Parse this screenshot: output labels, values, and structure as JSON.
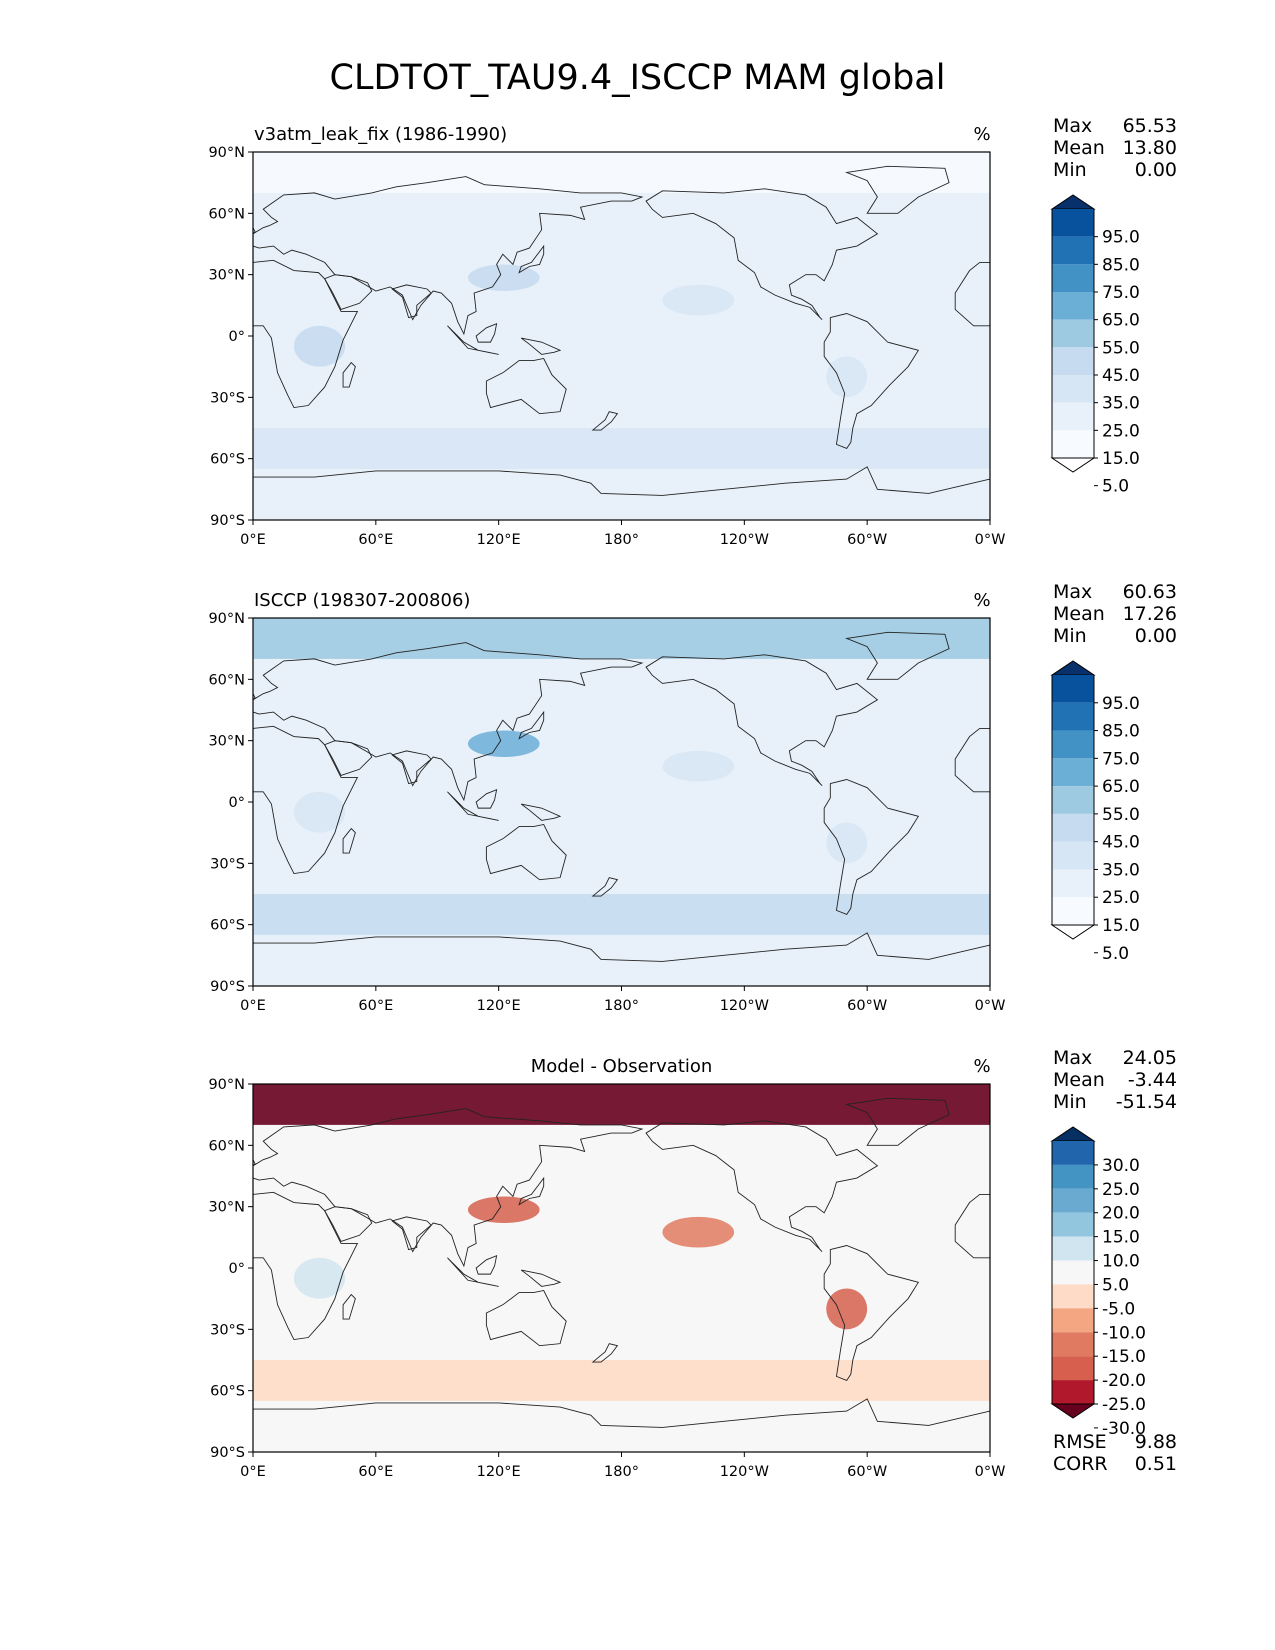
{
  "title": "CLDTOT_TAU9.4_ISCCP MAM global",
  "chart_data": [
    {
      "type": "heatmap",
      "title": "v3atm_leak_fix (1986-1990)",
      "units": "%",
      "stats": {
        "Max": "65.53",
        "Mean": "13.80",
        "Min": "0.00"
      },
      "colorbar": [
        "95.0",
        "85.0",
        "75.0",
        "65.0",
        "55.0",
        "45.0",
        "35.0",
        "25.0",
        "15.0",
        "5.0"
      ],
      "colors": [
        "#08306b",
        "#08519c",
        "#2171b5",
        "#4292c6",
        "#6baed6",
        "#9ecae1",
        "#c6dbef",
        "#d7e6f5",
        "#e8f1fa",
        "#f7fbff",
        "#ffffff"
      ],
      "yticks": [
        "90°N",
        "60°N",
        "30°N",
        "0°",
        "30°S",
        "60°S",
        "90°S"
      ],
      "xticks": [
        "0°E",
        "60°E",
        "120°E",
        "180°",
        "120°W",
        "60°W",
        "0°W"
      ],
      "xlim": [
        0,
        360
      ],
      "ylim": [
        -90,
        90
      ]
    },
    {
      "type": "heatmap",
      "title": "ISCCP (198307-200806)",
      "units": "%",
      "stats": {
        "Max": "60.63",
        "Mean": "17.26",
        "Min": "0.00"
      },
      "colorbar": [
        "95.0",
        "85.0",
        "75.0",
        "65.0",
        "55.0",
        "45.0",
        "35.0",
        "25.0",
        "15.0",
        "5.0"
      ],
      "colors": [
        "#08306b",
        "#08519c",
        "#2171b5",
        "#4292c6",
        "#6baed6",
        "#9ecae1",
        "#c6dbef",
        "#d7e6f5",
        "#e8f1fa",
        "#f7fbff",
        "#ffffff"
      ],
      "yticks": [
        "90°N",
        "60°N",
        "30°N",
        "0°",
        "30°S",
        "60°S",
        "90°S"
      ],
      "xticks": [
        "0°E",
        "60°E",
        "120°E",
        "180°",
        "120°W",
        "60°W",
        "0°W"
      ],
      "xlim": [
        0,
        360
      ],
      "ylim": [
        -90,
        90
      ]
    },
    {
      "type": "heatmap",
      "title": "Model - Observation",
      "units": "%",
      "stats": {
        "Max": "24.05",
        "Mean": "-3.44",
        "Min": "-51.54"
      },
      "colorbar": [
        "30.0",
        "25.0",
        "20.0",
        "15.0",
        "10.0",
        "5.0",
        "-5.0",
        "-10.0",
        "-15.0",
        "-20.0",
        "-25.0",
        "-30.0"
      ],
      "colors": [
        "#053061",
        "#2166ac",
        "#4393c3",
        "#6aa9d0",
        "#92c5de",
        "#d1e5f0",
        "#f7f7f7",
        "#fddbc7",
        "#f4a582",
        "#e07a60",
        "#d6604d",
        "#b2182b",
        "#67001f"
      ],
      "yticks": [
        "90°N",
        "60°N",
        "30°N",
        "0°",
        "30°S",
        "60°S",
        "90°S"
      ],
      "xticks": [
        "0°E",
        "60°E",
        "120°E",
        "180°",
        "120°W",
        "60°W",
        "0°W"
      ],
      "xlim": [
        0,
        360
      ],
      "ylim": [
        -90,
        90
      ],
      "metrics": {
        "RMSE": "9.88",
        "CORR": "0.51"
      }
    }
  ]
}
